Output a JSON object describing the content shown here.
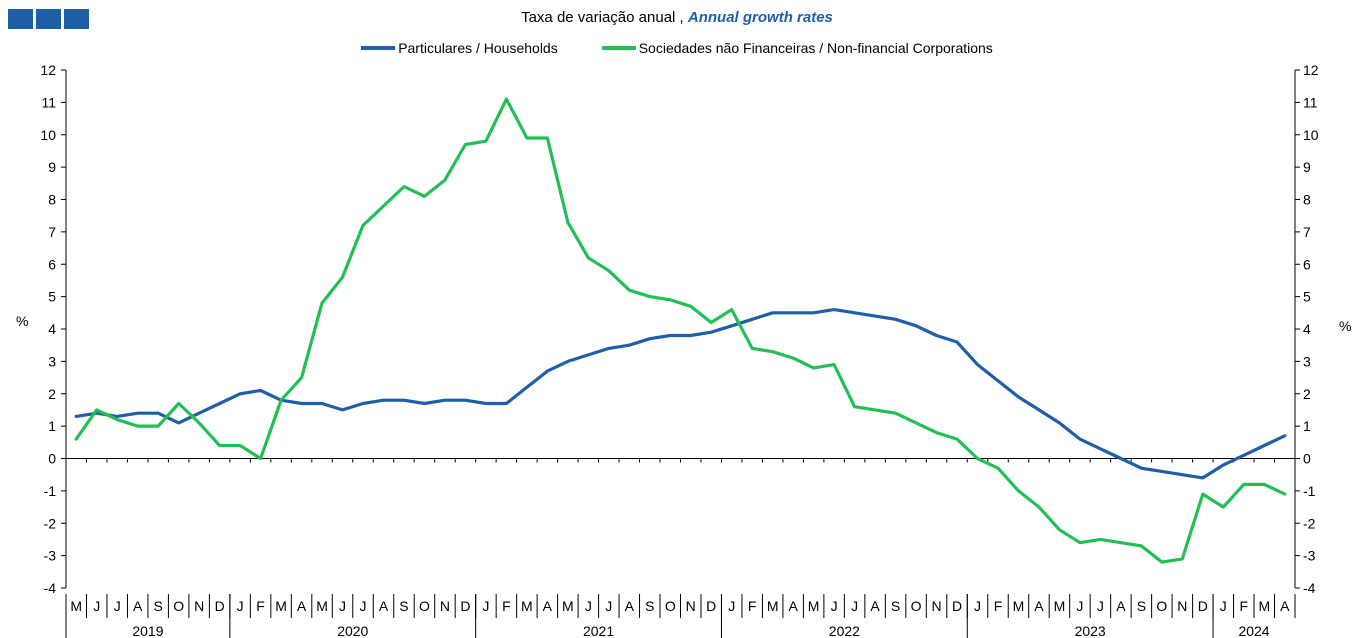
{
  "subtitle": {
    "pt": "Taxa de variação anual ,",
    "en": "Annual growth rates"
  },
  "colors": {
    "brand": "#1f5fa8",
    "households": "#1f5fa8",
    "corporations": "#22bf55"
  },
  "icons": {
    "logo": "bank-logo-icon"
  },
  "chart_data": {
    "type": "line",
    "title": "",
    "ylabel_left": "%",
    "ylabel_right": "%",
    "ylim": [
      -4,
      12
    ],
    "yticks": [
      12,
      11,
      10,
      9,
      8,
      7,
      6,
      5,
      4,
      3,
      2,
      1,
      0,
      -1,
      -2,
      -3,
      -4
    ],
    "grid": false,
    "legend_position": "top-center",
    "month_labels": [
      "M",
      "J",
      "J",
      "A",
      "S",
      "O",
      "N",
      "D",
      "J",
      "F",
      "M",
      "A",
      "M",
      "J",
      "J",
      "A",
      "S",
      "O",
      "N",
      "D",
      "J",
      "F",
      "M",
      "A",
      "M",
      "J",
      "J",
      "A",
      "S",
      "O",
      "N",
      "D",
      "J",
      "F",
      "M",
      "A",
      "M",
      "J",
      "J",
      "A",
      "S",
      "O",
      "N",
      "D",
      "J",
      "F",
      "M",
      "A",
      "M",
      "J",
      "J",
      "A",
      "S",
      "O",
      "N",
      "D",
      "J",
      "F",
      "M",
      "A"
    ],
    "years": [
      {
        "label": "2019",
        "start": 0,
        "end": 8
      },
      {
        "label": "2020",
        "start": 8,
        "end": 20
      },
      {
        "label": "2021",
        "start": 20,
        "end": 32
      },
      {
        "label": "2022",
        "start": 32,
        "end": 44
      },
      {
        "label": "2023",
        "start": 44,
        "end": 56
      },
      {
        "label": "2024",
        "start": 56,
        "end": 60
      }
    ],
    "series": [
      {
        "name": "Particulares / Households",
        "color": "#1f5fa8",
        "values": [
          1.3,
          1.4,
          1.3,
          1.4,
          1.4,
          1.1,
          1.4,
          1.7,
          2.0,
          2.1,
          1.8,
          1.7,
          1.7,
          1.5,
          1.7,
          1.8,
          1.8,
          1.7,
          1.8,
          1.8,
          1.7,
          1.7,
          2.2,
          2.7,
          3.0,
          3.2,
          3.4,
          3.5,
          3.7,
          3.8,
          3.8,
          3.9,
          4.1,
          4.3,
          4.5,
          4.5,
          4.5,
          4.6,
          4.5,
          4.4,
          4.3,
          4.1,
          3.8,
          3.6,
          2.9,
          2.4,
          1.9,
          1.5,
          1.1,
          0.6,
          0.3,
          0.0,
          -0.3,
          -0.4,
          -0.5,
          -0.6,
          -0.2,
          0.1,
          0.4,
          0.7
        ]
      },
      {
        "name": "Sociedades não Financeiras / Non-financial Corporations",
        "color": "#22bf55",
        "values": [
          0.6,
          1.5,
          1.2,
          1.0,
          1.0,
          1.7,
          1.1,
          0.4,
          0.4,
          0.0,
          1.8,
          2.5,
          4.8,
          5.6,
          7.2,
          7.8,
          8.4,
          8.1,
          8.6,
          9.7,
          9.8,
          11.1,
          9.9,
          9.9,
          7.3,
          6.2,
          5.8,
          5.2,
          5.0,
          4.9,
          4.7,
          4.2,
          4.6,
          3.4,
          3.3,
          3.1,
          2.8,
          2.9,
          1.6,
          1.5,
          1.4,
          1.1,
          0.8,
          0.6,
          0.0,
          -0.3,
          -1.0,
          -1.5,
          -2.2,
          -2.6,
          -2.5,
          -2.6,
          -2.7,
          -3.2,
          -3.1,
          -1.1,
          -1.5,
          -0.8,
          -0.8,
          -1.1
        ]
      }
    ]
  }
}
